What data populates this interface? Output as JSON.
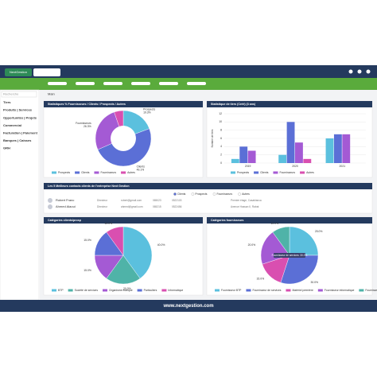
{
  "app": {
    "brand": "NextGestion",
    "search_placeholder": "Recherche",
    "menu": [
      "Tiers",
      "Produits | Services",
      "Opportunités | Projets",
      "Commercial",
      "Facturation | Paiement",
      "Banques | Caisses",
      "GRH"
    ],
    "breadcrumb": "Main",
    "footer": "www.nextgestion.com"
  },
  "chart_data": [
    {
      "type": "donut",
      "title": "Statistiques % Fournisseurs / Clients / Prospects / Autres",
      "categories": [
        "Prospects",
        "Clients",
        "Fournisseurs",
        "Autres"
      ],
      "values": [
        19.3,
        49.1,
        26.3,
        5.3
      ],
      "value_labels": [
        "19.3%",
        "49.1%",
        "26.3%",
        null
      ],
      "colors": [
        "#5bc0de",
        "#5b6fd6",
        "#a45ad4",
        "#d94fb0"
      ]
    },
    {
      "type": "bar",
      "title": "Statistique de tiers (Créé) (3 ans)",
      "y_label": "Nombre de tiers",
      "categories": [
        "2019",
        "2020",
        "2021"
      ],
      "series": [
        {
          "name": "Prospects",
          "color": "#5bc0de",
          "values": [
            1,
            2,
            6
          ]
        },
        {
          "name": "Clients",
          "color": "#5b6fd6",
          "values": [
            4,
            10,
            7
          ]
        },
        {
          "name": "Fournisseurs",
          "color": "#a45ad4",
          "values": [
            3,
            5,
            7
          ]
        },
        {
          "name": "Autres",
          "color": "#d94fb0",
          "values": [
            0,
            1,
            0
          ]
        }
      ],
      "ylim": [
        0,
        12
      ],
      "yticks": [
        0,
        2,
        4,
        6,
        8,
        10,
        12
      ],
      "grid": true
    },
    {
      "type": "pie",
      "title": "Catégories clients/prosp",
      "categories": [
        "BTP",
        "Société de services",
        "Organisme étatique",
        "Particuliers",
        "Informatique"
      ],
      "values": [
        40,
        20,
        15,
        15,
        10
      ],
      "value_labels": [
        "40.0%",
        "20.0%",
        "15.0%",
        "15.0%",
        "10.0%"
      ],
      "colors": [
        "#5bc0de",
        "#4fb3a8",
        "#a45ad4",
        "#5b6fd6",
        "#d94fb0"
      ]
    },
    {
      "type": "pie",
      "title": "Catégories fournisseurs",
      "categories": [
        "Fournisseur BTP",
        "Fournisseur de services",
        "Matériel première",
        "Fournisseur informatique",
        "Fournisseur détail"
      ],
      "values": [
        25,
        30,
        15,
        20,
        10
      ],
      "value_labels": [
        "25.0%",
        "30.0%",
        "15.0%",
        "20.0%",
        "10.0%"
      ],
      "colors": [
        "#5bc0de",
        "#5b6fd6",
        "#d94fb0",
        "#a45ad4",
        "#4fb3a8"
      ],
      "annotation": "Fournisseur de services: 30.0%"
    }
  ],
  "contacts": {
    "title": "Les 5 Meilleurs contacts clients de l'entreprise Next Gestion",
    "filters": [
      "Clients",
      "Prospects",
      "Fournisseurs",
      "Autres"
    ],
    "rows": [
      [
        "Robert Franc",
        "Directeur",
        "robert@gmail.com",
        "065023",
        "0522103",
        "Premier étage, Casablanca"
      ],
      [
        "Ahmed Alaoui",
        "Directeur",
        "ahmed@gmail.com",
        "065215",
        "0522456",
        "Avenue Hassan II, Rabat"
      ]
    ]
  }
}
